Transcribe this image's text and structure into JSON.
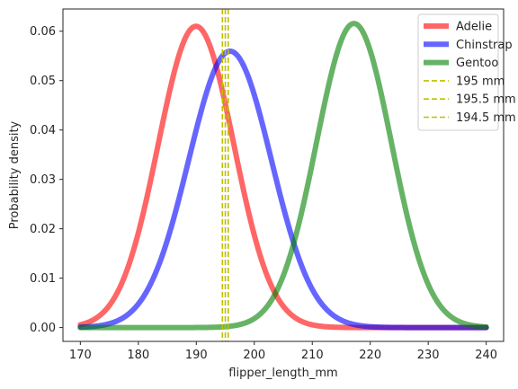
{
  "chart_data": {
    "type": "line",
    "xlabel": "flipper_length_mm",
    "ylabel": "Probability density",
    "xlim": [
      167,
      243
    ],
    "ylim": [
      -0.0028,
      0.0645
    ],
    "xticks": [
      170,
      180,
      190,
      200,
      210,
      220,
      230,
      240
    ],
    "yticks": [
      0.0,
      0.01,
      0.02,
      0.03,
      0.04,
      0.05,
      0.06
    ],
    "ytick_labels": [
      "0.00",
      "0.01",
      "0.02",
      "0.03",
      "0.04",
      "0.05",
      "0.06"
    ],
    "grid": false,
    "legend_position": "top-right",
    "series": [
      {
        "name": "Adelie",
        "kind": "normal",
        "mean": 189.95,
        "std": 6.54,
        "x_range": [
          170,
          240
        ],
        "color": "#ff0000"
      },
      {
        "name": "Chinstrap",
        "kind": "normal",
        "mean": 195.82,
        "std": 7.13,
        "x_range": [
          170,
          240
        ],
        "color": "#0000ff"
      },
      {
        "name": "Gentoo",
        "kind": "normal",
        "mean": 217.19,
        "std": 6.48,
        "x_range": [
          170,
          240
        ],
        "color": "#008000"
      }
    ],
    "vlines": [
      {
        "name": "195 mm",
        "x": 195,
        "color": "#bfbf00"
      },
      {
        "name": "195.5 mm",
        "x": 195.5,
        "color": "#bfbf00"
      },
      {
        "name": "194.5 mm",
        "x": 194.5,
        "color": "#bfbf00"
      }
    ]
  }
}
